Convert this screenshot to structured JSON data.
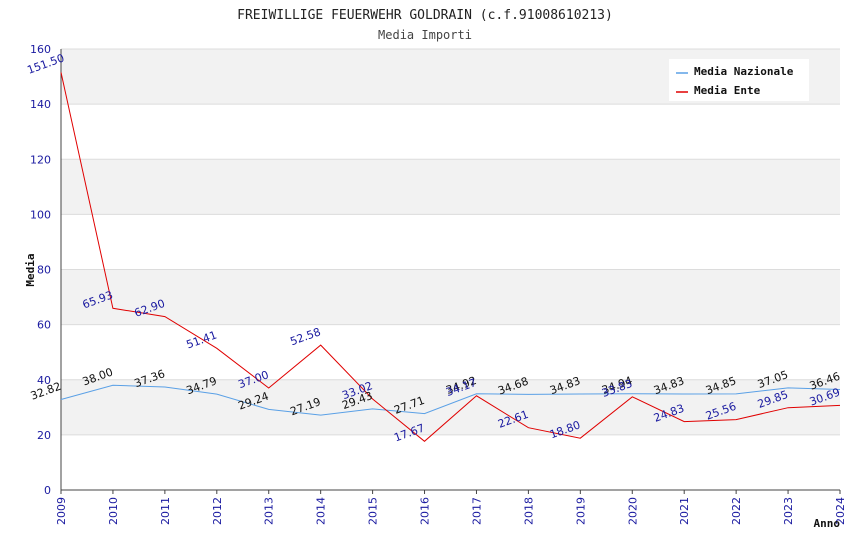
{
  "chart_data": {
    "type": "line",
    "title": "FREIWILLIGE FEUERWEHR GOLDRAIN (c.f.91008610213)",
    "subtitle": "Media Importi",
    "xlabel": "Anno",
    "ylabel": "Media",
    "ylim": [
      0,
      160
    ],
    "yticks": [
      0,
      20,
      40,
      60,
      80,
      100,
      120,
      140,
      160
    ],
    "grid": true,
    "legend_position": "top-right",
    "x": [
      "2009",
      "2010",
      "2011",
      "2012",
      "2013",
      "2014",
      "2015",
      "2016",
      "2017",
      "2018",
      "2019",
      "2020",
      "2021",
      "2022",
      "2023",
      "2024"
    ],
    "series": [
      {
        "name": "Media Nazionale",
        "color": "#5aa0e6",
        "values": [
          32.82,
          38.0,
          37.36,
          34.79,
          29.24,
          27.19,
          29.43,
          27.71,
          34.92,
          34.68,
          34.83,
          34.94,
          34.83,
          34.85,
          37.05,
          36.46
        ],
        "labels": [
          "32.82",
          "38.00",
          "37.36",
          "34.79",
          "29.24",
          "27.19",
          "29.43",
          "27.71",
          "34.92",
          "34.68",
          "34.83",
          "34.94",
          "34.83",
          "34.85",
          "37.05",
          "36.46"
        ]
      },
      {
        "name": "Media Ente",
        "color": "#e00000",
        "values": [
          151.5,
          65.93,
          62.9,
          51.41,
          37.0,
          52.58,
          33.02,
          17.67,
          34.17,
          22.61,
          18.8,
          33.83,
          24.83,
          25.56,
          29.85,
          30.69
        ],
        "labels": [
          "151.50",
          "65.93",
          "62.90",
          "51.41",
          "37.00",
          "52.58",
          "33.02",
          "17.67",
          "34.17",
          "22.61",
          "18.80",
          "33.83",
          "24.83",
          "25.56",
          "29.85",
          "30.69"
        ]
      }
    ]
  }
}
